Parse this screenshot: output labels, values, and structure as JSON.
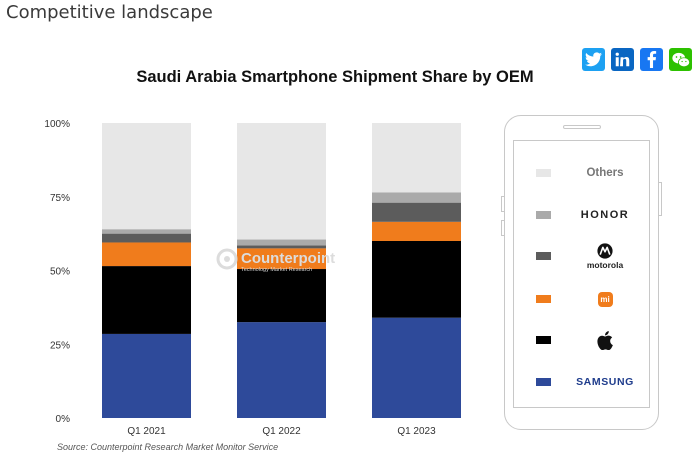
{
  "page": {
    "section_heading": "Competitive landscape",
    "share_icons": [
      {
        "name": "twitter-icon",
        "color": "#1da1f2"
      },
      {
        "name": "linkedin-icon",
        "color": "#0a66c2"
      },
      {
        "name": "facebook-icon",
        "color": "#1877f2"
      },
      {
        "name": "wechat-icon",
        "color": "#2dc100"
      }
    ]
  },
  "chart_data": {
    "type": "bar",
    "stacked": true,
    "title": "Saudi Arabia Smartphone Shipment Share by OEM",
    "source": "Source: Counterpoint Research Market Monitor Service",
    "watermark": {
      "name": "Counterpoint",
      "tagline": "Technology Market Research"
    },
    "categories": [
      "Q1 2021",
      "Q1 2022",
      "Q1 2023"
    ],
    "ylim": [
      0,
      100
    ],
    "yticks": [
      "0%",
      "25%",
      "50%",
      "75%",
      "100%"
    ],
    "series": [
      {
        "name": "SAMSUNG",
        "color": "#2e4a9a",
        "values": [
          28.5,
          32.5,
          34
        ]
      },
      {
        "name": "Apple",
        "color": "#000000",
        "values": [
          23,
          18,
          26
        ]
      },
      {
        "name": "Xiaomi",
        "color": "#f07c1c",
        "values": [
          8,
          7,
          6.5
        ]
      },
      {
        "name": "motorola",
        "color": "#5c5c5c",
        "values": [
          3,
          1,
          6.5
        ]
      },
      {
        "name": "HONOR",
        "color": "#aaaaaa",
        "values": [
          1.5,
          2,
          3.5
        ]
      },
      {
        "name": "Others",
        "color": "#e7e7e7",
        "values": [
          36,
          39.5,
          23.5
        ]
      }
    ],
    "legend": {
      "placement": "right",
      "others": "Others",
      "honor": "HONOR",
      "motorola": "motorola",
      "xiaomi_mark": "mi",
      "samsung": "SAMSUNG"
    }
  }
}
